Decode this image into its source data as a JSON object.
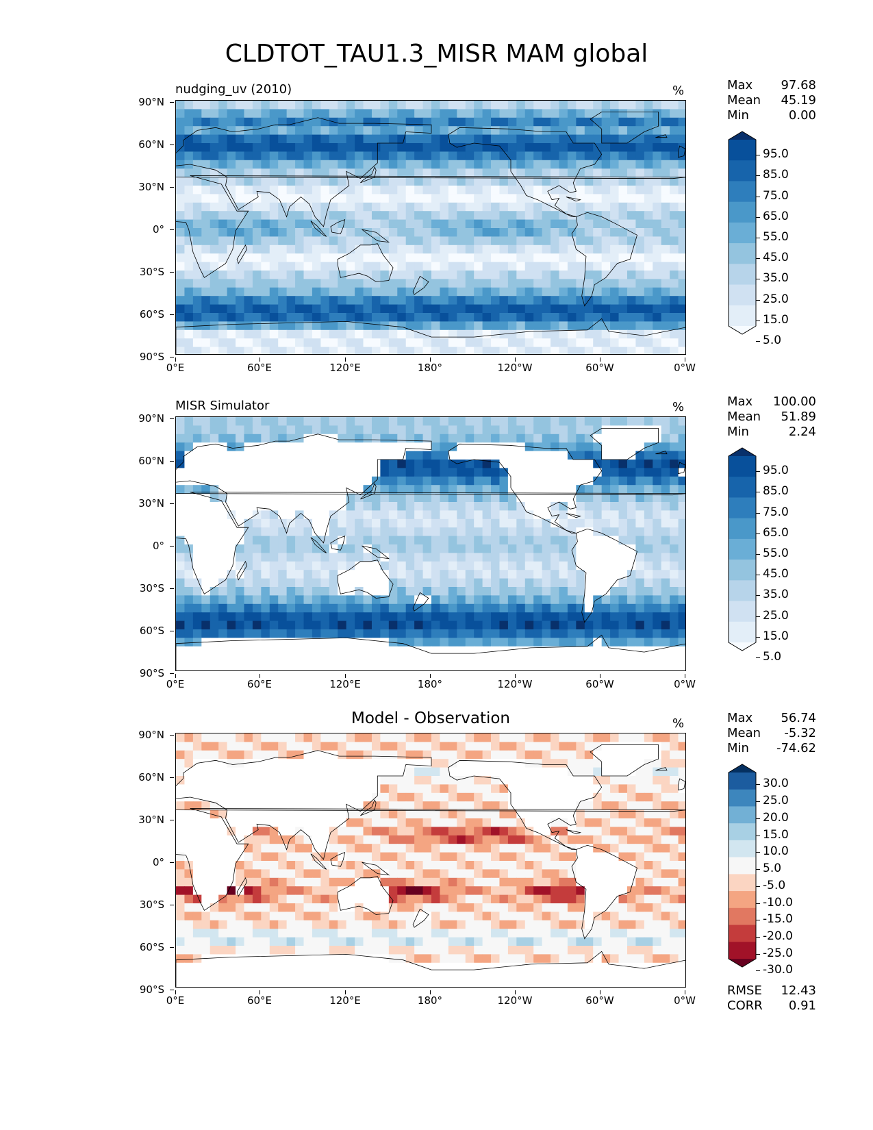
{
  "figure_title": "CLDTOT_TAU1.3_MISR MAM global",
  "axes": {
    "y_ticks": [
      "90°N",
      "60°N",
      "30°N",
      "0°",
      "30°S",
      "60°S",
      "90°S"
    ],
    "x_ticks": [
      "0°E",
      "60°E",
      "120°E",
      "180°",
      "120°W",
      "60°W",
      "0°W"
    ]
  },
  "panels": [
    {
      "title": "nudging_uv (2010)",
      "units": "%",
      "stats": [
        {
          "label": "Max",
          "value": "97.68"
        },
        {
          "label": "Mean",
          "value": "45.19"
        },
        {
          "label": "Min",
          "value": "0.00"
        }
      ],
      "colorbar_labels": [
        "95.0",
        "85.0",
        "75.0",
        "65.0",
        "55.0",
        "45.0",
        "35.0",
        "25.0",
        "15.0",
        "5.0"
      ],
      "colorbar_colors": [
        "#08306b",
        "#08509b",
        "#1764ab",
        "#2e7ebc",
        "#4a98c9",
        "#6aaed6",
        "#94c4df",
        "#b7d4ea",
        "#d0e1f2",
        "#e3eef8",
        "#f7fbff"
      ]
    },
    {
      "title": "MISR Simulator",
      "units": "%",
      "stats": [
        {
          "label": "Max",
          "value": "100.00"
        },
        {
          "label": "Mean",
          "value": "51.89"
        },
        {
          "label": "Min",
          "value": "2.24"
        }
      ],
      "colorbar_labels": [
        "95.0",
        "85.0",
        "75.0",
        "65.0",
        "55.0",
        "45.0",
        "35.0",
        "25.0",
        "15.0",
        "5.0"
      ],
      "colorbar_colors": [
        "#08306b",
        "#08509b",
        "#1764ab",
        "#2e7ebc",
        "#4a98c9",
        "#6aaed6",
        "#94c4df",
        "#b7d4ea",
        "#d0e1f2",
        "#e3eef8",
        "#f7fbff"
      ]
    },
    {
      "title": "Model - Observation",
      "units": "%",
      "stats": [
        {
          "label": "Max",
          "value": "56.74"
        },
        {
          "label": "Mean",
          "value": "-5.32"
        },
        {
          "label": "Min",
          "value": "-74.62"
        }
      ],
      "colorbar_labels": [
        "30.0",
        "25.0",
        "20.0",
        "15.0",
        "10.0",
        "5.0",
        "-5.0",
        "-10.0",
        "-15.0",
        "-20.0",
        "-25.0",
        "-30.0"
      ],
      "colorbar_colors": [
        "#053061",
        "#1c5c9f",
        "#3d86bd",
        "#72b0d5",
        "#a8d0e4",
        "#d2e6f0",
        "#f7f7f7",
        "#fbd5c2",
        "#f4a582",
        "#e17861",
        "#c43c3c",
        "#a11228",
        "#67001f"
      ],
      "metrics": [
        {
          "label": "RMSE",
          "value": "12.43"
        },
        {
          "label": "CORR",
          "value": "0.91"
        }
      ]
    }
  ]
}
